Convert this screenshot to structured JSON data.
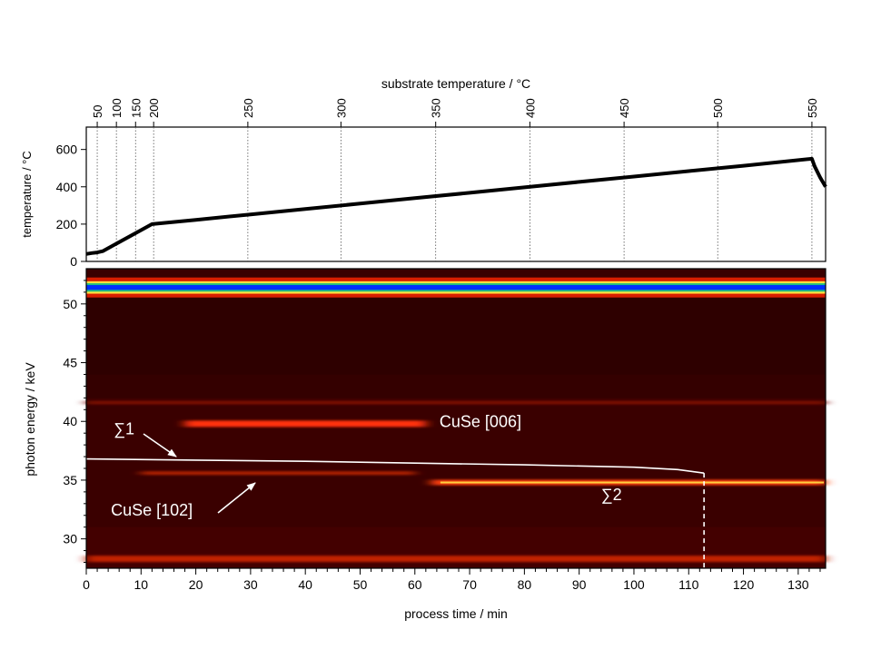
{
  "chart_data": [
    {
      "type": "line",
      "xlabel": "",
      "ylabel": "temperature / °C",
      "top_axis_label": "substrate temperature / °C",
      "xlim": [
        0,
        135
      ],
      "ylim": [
        0,
        720
      ],
      "yticks": [
        0,
        200,
        400,
        600
      ],
      "top_ticks": [
        {
          "label": "50",
          "time": 2.0
        },
        {
          "label": "100",
          "time": 5.5
        },
        {
          "label": "150",
          "time": 9.0
        },
        {
          "label": "200",
          "time": 12.3
        },
        {
          "label": "250",
          "time": 29.5
        },
        {
          "label": "300",
          "time": 46.5
        },
        {
          "label": "350",
          "time": 63.8
        },
        {
          "label": "400",
          "time": 81.0
        },
        {
          "label": "450",
          "time": 98.2
        },
        {
          "label": "500",
          "time": 115.3
        },
        {
          "label": "550",
          "time": 132.5
        }
      ],
      "series": [
        {
          "x": [
            0,
            1,
            2,
            3,
            12,
            20,
            30,
            40,
            50,
            60,
            70,
            80,
            90,
            100,
            110,
            120,
            132.5,
            133,
            134,
            135
          ],
          "y": [
            40,
            45,
            48,
            55,
            200,
            223,
            252,
            281,
            310,
            339,
            368,
            397,
            426,
            455,
            484,
            513,
            550,
            510,
            450,
            400
          ]
        }
      ],
      "grid": "vertical dotted lines at top tick positions",
      "color": "#000000"
    },
    {
      "type": "heatmap",
      "xlabel": "process time / min",
      "ylabel": "photon energy / keV",
      "xlim": [
        0,
        135
      ],
      "ylim": [
        27.5,
        53
      ],
      "xticks": [
        0,
        10,
        20,
        30,
        40,
        50,
        60,
        70,
        80,
        90,
        100,
        110,
        120,
        130
      ],
      "yticks": [
        30,
        35,
        40,
        45,
        50
      ],
      "background_color": "#3a0000",
      "bands": [
        {
          "energy": 51.4,
          "start": 0,
          "end": 135,
          "intensity": "very high",
          "colors": [
            "#d81e00",
            "#ffe040",
            "#20c080",
            "#0030ff"
          ]
        },
        {
          "energy": 39.8,
          "start": 18,
          "end": 62,
          "intensity": "medium",
          "colors": [
            "#ff3010"
          ]
        },
        {
          "energy": 35.6,
          "start": 10,
          "end": 60,
          "intensity": "low",
          "colors": [
            "#b02000"
          ]
        },
        {
          "energy": 34.8,
          "start": 63,
          "end": 135,
          "intensity": "high",
          "colors": [
            "#ff4010",
            "#ffd040"
          ]
        },
        {
          "energy": 28.3,
          "start": 0,
          "end": 135,
          "intensity": "medium",
          "colors": [
            "#c02000"
          ]
        },
        {
          "energy": 41.6,
          "start": 0,
          "end": 135,
          "intensity": "low",
          "colors": [
            "#7a0a00"
          ]
        }
      ],
      "sum1_curve": {
        "x": [
          0,
          20,
          40,
          60,
          80,
          100,
          108,
          112.8
        ],
        "y": [
          36.8,
          36.7,
          36.6,
          36.45,
          36.3,
          36.1,
          35.9,
          35.6
        ]
      },
      "sum2_marker_time": 112.8,
      "annotations": [
        {
          "text": "∑1",
          "x": 5,
          "y": 38.9
        },
        {
          "text": "CuSe [006]",
          "x": 64.5,
          "y": 39.5
        },
        {
          "text": "CuSe [102]",
          "x": 4.5,
          "y": 32.0
        },
        {
          "text": "∑2",
          "x": 94,
          "y": 33.3
        }
      ]
    }
  ]
}
